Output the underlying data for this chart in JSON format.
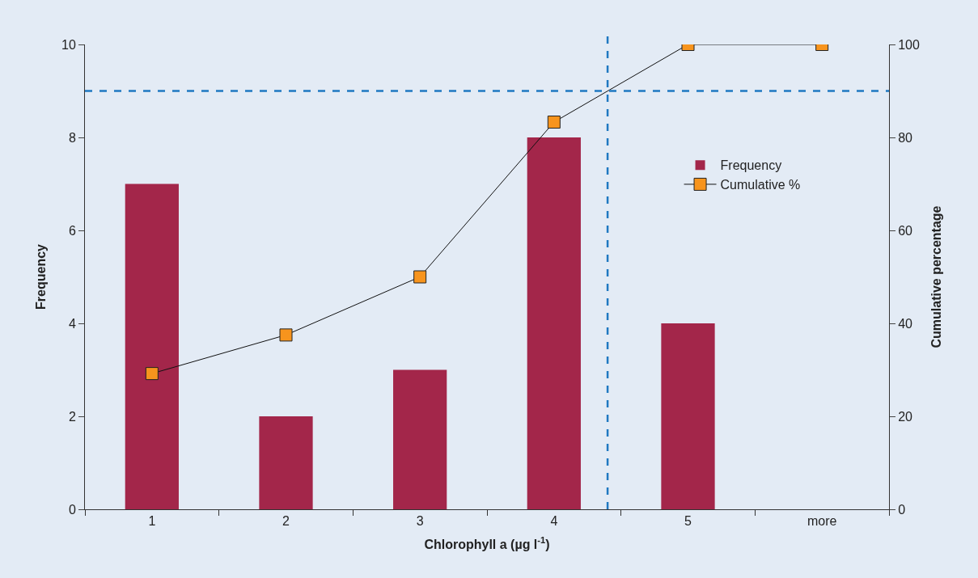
{
  "chart_data": {
    "type": "bar",
    "xlabel": "Chlorophyll a (µg l$^{-1}$)",
    "ylabel": "Frequency",
    "y2label": "Cumulative percentage",
    "x": [
      1,
      2,
      3,
      4,
      5,
      6
    ],
    "series": [
      {
        "name": "Frequency",
        "color": "#a3264a",
        "values": [
          7,
          2,
          3,
          8,
          4,
          0
        ]
      },
      {
        "name": "Cumulative %",
        "type": "line",
        "axis": "y2",
        "color": "#f7941d",
        "marker": "square",
        "values": [
          29.2,
          37.5,
          50,
          83.3,
          100,
          100
        ]
      }
    ],
    "xlim": [
      0.5,
      6.5
    ],
    "xticks": [
      1,
      2,
      3,
      4,
      5,
      {
        "value": 6,
        "label": "more"
      },
      {
        "value": 0.5,
        "label": null
      },
      {
        "value": 1.5,
        "label": null
      },
      {
        "value": 2.5,
        "label": null
      },
      {
        "value": 3.5,
        "label": null
      },
      {
        "value": 4.5,
        "label": null
      },
      {
        "value": 5.5,
        "label": null
      },
      {
        "value": 6.5,
        "label": null
      }
    ],
    "ylim": [
      0,
      10
    ],
    "yticks": [
      0,
      2,
      4,
      6,
      8,
      10
    ],
    "y2lim": [
      0,
      100
    ],
    "y2ticks": [
      0,
      20,
      40,
      60,
      80,
      100
    ],
    "ref_lines": [
      {
        "axis": "x",
        "value": 4.4,
        "color": "#1f78c1",
        "line_style": "dashed"
      },
      {
        "axis": "y2",
        "value": 90,
        "color": "#1f78c1",
        "line_style": "dashed"
      }
    ],
    "grid": false,
    "legend": "top right"
  }
}
